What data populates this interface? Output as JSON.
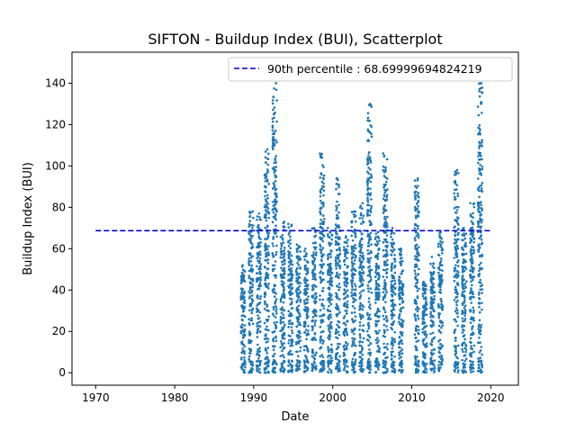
{
  "chart_data": {
    "type": "scatter",
    "title": "SIFTON - Buildup Index (BUI), Scatterplot",
    "xlabel": "Date",
    "ylabel": "Buildup Index (BUI)",
    "xlim": [
      1967,
      2023.5
    ],
    "ylim": [
      -6,
      155
    ],
    "xticks": [
      1970,
      1980,
      1990,
      2000,
      2010,
      2020
    ],
    "yticks": [
      0,
      20,
      40,
      60,
      80,
      100,
      120,
      140
    ],
    "grid": false,
    "legend_position": "top-right",
    "series": [
      {
        "type": "scatter",
        "color": "#1f77b4",
        "seasons": [
          {
            "year": 1988,
            "max": 52
          },
          {
            "year": 1989,
            "max": 78
          },
          {
            "year": 1990,
            "max": 77
          },
          {
            "year": 1991,
            "max": 108
          },
          {
            "year": 1992,
            "max": 140
          },
          {
            "year": 1993,
            "max": 73
          },
          {
            "year": 1994,
            "max": 72
          },
          {
            "year": 1995,
            "max": 62
          },
          {
            "year": 1996,
            "max": 60
          },
          {
            "year": 1997,
            "max": 70
          },
          {
            "year": 1998,
            "max": 106
          },
          {
            "year": 1999,
            "max": 70
          },
          {
            "year": 2000,
            "max": 94
          },
          {
            "year": 2001,
            "max": 66
          },
          {
            "year": 2002,
            "max": 78
          },
          {
            "year": 2003,
            "max": 82
          },
          {
            "year": 2004,
            "max": 130
          },
          {
            "year": 2005,
            "max": 68
          },
          {
            "year": 2006,
            "max": 106
          },
          {
            "year": 2007,
            "max": 70
          },
          {
            "year": 2008,
            "max": 60
          },
          {
            "year": 2010,
            "max": 94
          },
          {
            "year": 2011,
            "max": 44
          },
          {
            "year": 2012,
            "max": 56
          },
          {
            "year": 2013,
            "max": 68
          },
          {
            "year": 2015,
            "max": 98
          },
          {
            "year": 2016,
            "max": 70
          },
          {
            "year": 2017,
            "max": 82
          },
          {
            "year": 2018,
            "max": 140
          }
        ]
      }
    ],
    "reference_line": {
      "label": "90th percentile : 68.69999694824219",
      "value": 68.69999694824219,
      "x_start": 1970,
      "x_end": 2020,
      "color": "#0000cc",
      "style": "dashed"
    }
  }
}
